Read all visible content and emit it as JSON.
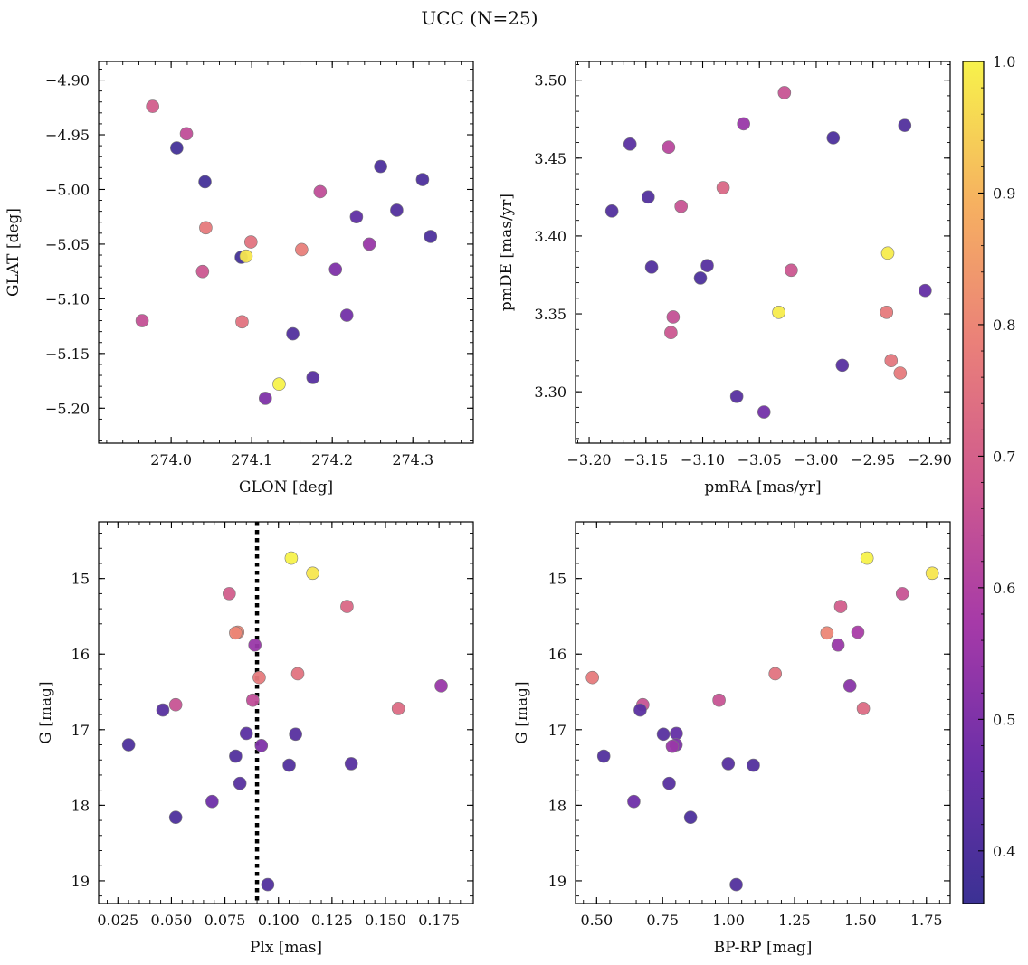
{
  "figure": {
    "title": "UCC (N=25)"
  },
  "colors": {
    "cmap": [
      "#3b3194",
      "#6c2fa8",
      "#a63aa8",
      "#cf5a8e",
      "#ea8079",
      "#f6b160",
      "#f7f24b"
    ],
    "marker_edge": "#7a7a7a",
    "plx_line": "#000000"
  },
  "colorbar": {
    "range": [
      0.36,
      1.0
    ],
    "ticks": [
      "0.4",
      "0.5",
      "0.6",
      "0.7",
      "0.8",
      "0.9",
      "1.0"
    ],
    "tick_values": [
      0.4,
      0.5,
      0.6,
      0.7,
      0.8,
      0.9,
      1.0
    ]
  },
  "chart_data": [
    {
      "type": "scatter",
      "xlabel": "GLON [deg]",
      "ylabel": "GLAT [deg]",
      "xlim": [
        273.91,
        274.375
      ],
      "ylim": [
        -5.232,
        -4.883
      ],
      "y_inverted": false,
      "xticks": [
        "274.0",
        "274.1",
        "274.2",
        "274.3"
      ],
      "xtick_values": [
        274.0,
        274.1,
        274.2,
        274.3
      ],
      "yticks": [
        "−4.90",
        "−4.95",
        "−5.00",
        "−5.05",
        "−5.10",
        "−5.15",
        "−5.20"
      ],
      "ytick_values": [
        -4.9,
        -4.95,
        -5.0,
        -5.05,
        -5.1,
        -5.15,
        -5.2
      ],
      "points": [
        {
          "x": 273.977,
          "y": -4.924,
          "c": 0.69
        },
        {
          "x": 274.019,
          "y": -4.949,
          "c": 0.64
        },
        {
          "x": 274.007,
          "y": -4.962,
          "c": 0.38
        },
        {
          "x": 274.042,
          "y": -4.993,
          "c": 0.38
        },
        {
          "x": 274.043,
          "y": -5.035,
          "c": 0.77
        },
        {
          "x": 274.039,
          "y": -5.075,
          "c": 0.67
        },
        {
          "x": 273.964,
          "y": -5.12,
          "c": 0.65
        },
        {
          "x": 274.087,
          "y": -5.062,
          "c": 0.38
        },
        {
          "x": 274.093,
          "y": -5.061,
          "c": 0.98
        },
        {
          "x": 274.099,
          "y": -5.048,
          "c": 0.75
        },
        {
          "x": 274.088,
          "y": -5.121,
          "c": 0.75
        },
        {
          "x": 274.117,
          "y": -5.191,
          "c": 0.5
        },
        {
          "x": 274.134,
          "y": -5.178,
          "c": 1.0
        },
        {
          "x": 274.151,
          "y": -5.132,
          "c": 0.41
        },
        {
          "x": 274.162,
          "y": -5.055,
          "c": 0.78
        },
        {
          "x": 274.185,
          "y": -5.002,
          "c": 0.64
        },
        {
          "x": 274.176,
          "y": -5.172,
          "c": 0.42
        },
        {
          "x": 274.204,
          "y": -5.073,
          "c": 0.5
        },
        {
          "x": 274.218,
          "y": -5.115,
          "c": 0.48
        },
        {
          "x": 274.23,
          "y": -5.025,
          "c": 0.44
        },
        {
          "x": 274.246,
          "y": -5.05,
          "c": 0.55
        },
        {
          "x": 274.26,
          "y": -4.979,
          "c": 0.4
        },
        {
          "x": 274.28,
          "y": -5.019,
          "c": 0.41
        },
        {
          "x": 274.312,
          "y": -4.991,
          "c": 0.4
        },
        {
          "x": 274.322,
          "y": -5.043,
          "c": 0.4
        }
      ]
    },
    {
      "type": "scatter",
      "xlabel": "pmRA [mas/yr]",
      "ylabel": "pmDE [mas/yr]",
      "xlim": [
        -3.212,
        -2.882
      ],
      "ylim": [
        3.267,
        3.512
      ],
      "y_inverted": false,
      "xticks": [
        "−3.20",
        "−3.15",
        "−3.10",
        "−3.05",
        "−3.00",
        "−2.95",
        "−2.90"
      ],
      "xtick_values": [
        -3.2,
        -3.15,
        -3.1,
        -3.05,
        -3.0,
        -2.95,
        -2.9
      ],
      "yticks": [
        "3.30",
        "3.35",
        "3.40",
        "3.45",
        "3.50"
      ],
      "ytick_values": [
        3.3,
        3.35,
        3.4,
        3.45,
        3.5
      ],
      "points": [
        {
          "x": -3.028,
          "y": 3.492,
          "c": 0.66
        },
        {
          "x": -3.064,
          "y": 3.472,
          "c": 0.55
        },
        {
          "x": -3.164,
          "y": 3.459,
          "c": 0.43
        },
        {
          "x": -3.13,
          "y": 3.457,
          "c": 0.62
        },
        {
          "x": -2.985,
          "y": 3.463,
          "c": 0.4
        },
        {
          "x": -2.922,
          "y": 3.471,
          "c": 0.41
        },
        {
          "x": -3.18,
          "y": 3.416,
          "c": 0.41
        },
        {
          "x": -3.148,
          "y": 3.425,
          "c": 0.41
        },
        {
          "x": -3.119,
          "y": 3.419,
          "c": 0.66
        },
        {
          "x": -3.082,
          "y": 3.431,
          "c": 0.72
        },
        {
          "x": -3.145,
          "y": 3.38,
          "c": 0.41
        },
        {
          "x": -3.102,
          "y": 3.373,
          "c": 0.4
        },
        {
          "x": -3.096,
          "y": 3.381,
          "c": 0.42
        },
        {
          "x": -3.022,
          "y": 3.378,
          "c": 0.67
        },
        {
          "x": -2.937,
          "y": 3.389,
          "c": 0.99
        },
        {
          "x": -2.904,
          "y": 3.365,
          "c": 0.45
        },
        {
          "x": -3.126,
          "y": 3.348,
          "c": 0.65
        },
        {
          "x": -3.128,
          "y": 3.338,
          "c": 0.67
        },
        {
          "x": -3.033,
          "y": 3.351,
          "c": 0.99
        },
        {
          "x": -2.938,
          "y": 3.351,
          "c": 0.77
        },
        {
          "x": -2.934,
          "y": 3.32,
          "c": 0.76
        },
        {
          "x": -2.926,
          "y": 3.312,
          "c": 0.77
        },
        {
          "x": -2.977,
          "y": 3.317,
          "c": 0.42
        },
        {
          "x": -3.07,
          "y": 3.297,
          "c": 0.42
        },
        {
          "x": -3.046,
          "y": 3.287,
          "c": 0.48
        }
      ]
    },
    {
      "type": "scatter",
      "xlabel": "Plx [mas]",
      "ylabel": "G [mag]",
      "xlim": [
        0.016,
        0.191
      ],
      "ylim": [
        19.3,
        14.25
      ],
      "y_inverted": true,
      "vline": {
        "x": 0.09,
        "style": "dotted"
      },
      "xticks": [
        "0.025",
        "0.050",
        "0.075",
        "0.100",
        "0.125",
        "0.150",
        "0.175"
      ],
      "xtick_values": [
        0.025,
        0.05,
        0.075,
        0.1,
        0.125,
        0.15,
        0.175
      ],
      "yticks": [
        "15",
        "16",
        "17",
        "18",
        "19"
      ],
      "ytick_values": [
        15,
        16,
        17,
        18,
        19
      ],
      "points": [
        {
          "x": 0.106,
          "y": 14.73,
          "c": 1.0
        },
        {
          "x": 0.116,
          "y": 14.93,
          "c": 0.98
        },
        {
          "x": 0.077,
          "y": 15.2,
          "c": 0.69
        },
        {
          "x": 0.132,
          "y": 15.37,
          "c": 0.72
        },
        {
          "x": 0.081,
          "y": 15.71,
          "c": 0.8
        },
        {
          "x": 0.08,
          "y": 15.72,
          "c": 0.8
        },
        {
          "x": 0.089,
          "y": 15.88,
          "c": 0.55
        },
        {
          "x": 0.109,
          "y": 16.26,
          "c": 0.75
        },
        {
          "x": 0.091,
          "y": 16.31,
          "c": 0.77
        },
        {
          "x": 0.176,
          "y": 16.42,
          "c": 0.55
        },
        {
          "x": 0.088,
          "y": 16.61,
          "c": 0.64
        },
        {
          "x": 0.052,
          "y": 16.67,
          "c": 0.66
        },
        {
          "x": 0.046,
          "y": 16.74,
          "c": 0.42
        },
        {
          "x": 0.156,
          "y": 16.72,
          "c": 0.73
        },
        {
          "x": 0.085,
          "y": 17.05,
          "c": 0.43
        },
        {
          "x": 0.108,
          "y": 17.06,
          "c": 0.42
        },
        {
          "x": 0.03,
          "y": 17.2,
          "c": 0.4
        },
        {
          "x": 0.092,
          "y": 17.21,
          "c": 0.5
        },
        {
          "x": 0.08,
          "y": 17.35,
          "c": 0.41
        },
        {
          "x": 0.134,
          "y": 17.45,
          "c": 0.42
        },
        {
          "x": 0.105,
          "y": 17.47,
          "c": 0.41
        },
        {
          "x": 0.082,
          "y": 17.71,
          "c": 0.42
        },
        {
          "x": 0.069,
          "y": 17.95,
          "c": 0.47
        },
        {
          "x": 0.052,
          "y": 18.16,
          "c": 0.4
        },
        {
          "x": 0.095,
          "y": 19.05,
          "c": 0.41
        }
      ]
    },
    {
      "type": "scatter",
      "xlabel": "BP-RP [mag]",
      "ylabel": "G [mag]",
      "xlim": [
        0.42,
        1.84
      ],
      "ylim": [
        19.3,
        14.25
      ],
      "y_inverted": true,
      "xticks": [
        "0.50",
        "0.75",
        "1.00",
        "1.25",
        "1.50",
        "1.75"
      ],
      "xtick_values": [
        0.5,
        0.75,
        1.0,
        1.25,
        1.5,
        1.75
      ],
      "yticks": [
        "15",
        "16",
        "17",
        "18",
        "19"
      ],
      "ytick_values": [
        15,
        16,
        17,
        18,
        19
      ],
      "points": [
        {
          "x": 1.525,
          "y": 14.73,
          "c": 1.0
        },
        {
          "x": 1.772,
          "y": 14.93,
          "c": 0.98
        },
        {
          "x": 1.659,
          "y": 15.2,
          "c": 0.66
        },
        {
          "x": 1.425,
          "y": 15.37,
          "c": 0.69
        },
        {
          "x": 1.373,
          "y": 15.72,
          "c": 0.8
        },
        {
          "x": 1.49,
          "y": 15.71,
          "c": 0.58
        },
        {
          "x": 1.415,
          "y": 15.88,
          "c": 0.55
        },
        {
          "x": 1.177,
          "y": 16.26,
          "c": 0.75
        },
        {
          "x": 0.484,
          "y": 16.31,
          "c": 0.77
        },
        {
          "x": 1.46,
          "y": 16.42,
          "c": 0.52
        },
        {
          "x": 0.964,
          "y": 16.61,
          "c": 0.66
        },
        {
          "x": 0.675,
          "y": 16.67,
          "c": 0.66
        },
        {
          "x": 0.665,
          "y": 16.74,
          "c": 0.43
        },
        {
          "x": 1.511,
          "y": 16.72,
          "c": 0.73
        },
        {
          "x": 0.753,
          "y": 17.06,
          "c": 0.42
        },
        {
          "x": 0.802,
          "y": 17.05,
          "c": 0.45
        },
        {
          "x": 0.801,
          "y": 17.2,
          "c": 0.5
        },
        {
          "x": 0.787,
          "y": 17.22,
          "c": 0.55
        },
        {
          "x": 0.527,
          "y": 17.35,
          "c": 0.41
        },
        {
          "x": 0.999,
          "y": 17.45,
          "c": 0.42
        },
        {
          "x": 1.094,
          "y": 17.47,
          "c": 0.41
        },
        {
          "x": 0.775,
          "y": 17.71,
          "c": 0.42
        },
        {
          "x": 0.641,
          "y": 17.95,
          "c": 0.47
        },
        {
          "x": 0.856,
          "y": 18.16,
          "c": 0.4
        },
        {
          "x": 1.029,
          "y": 19.05,
          "c": 0.41
        }
      ]
    }
  ]
}
